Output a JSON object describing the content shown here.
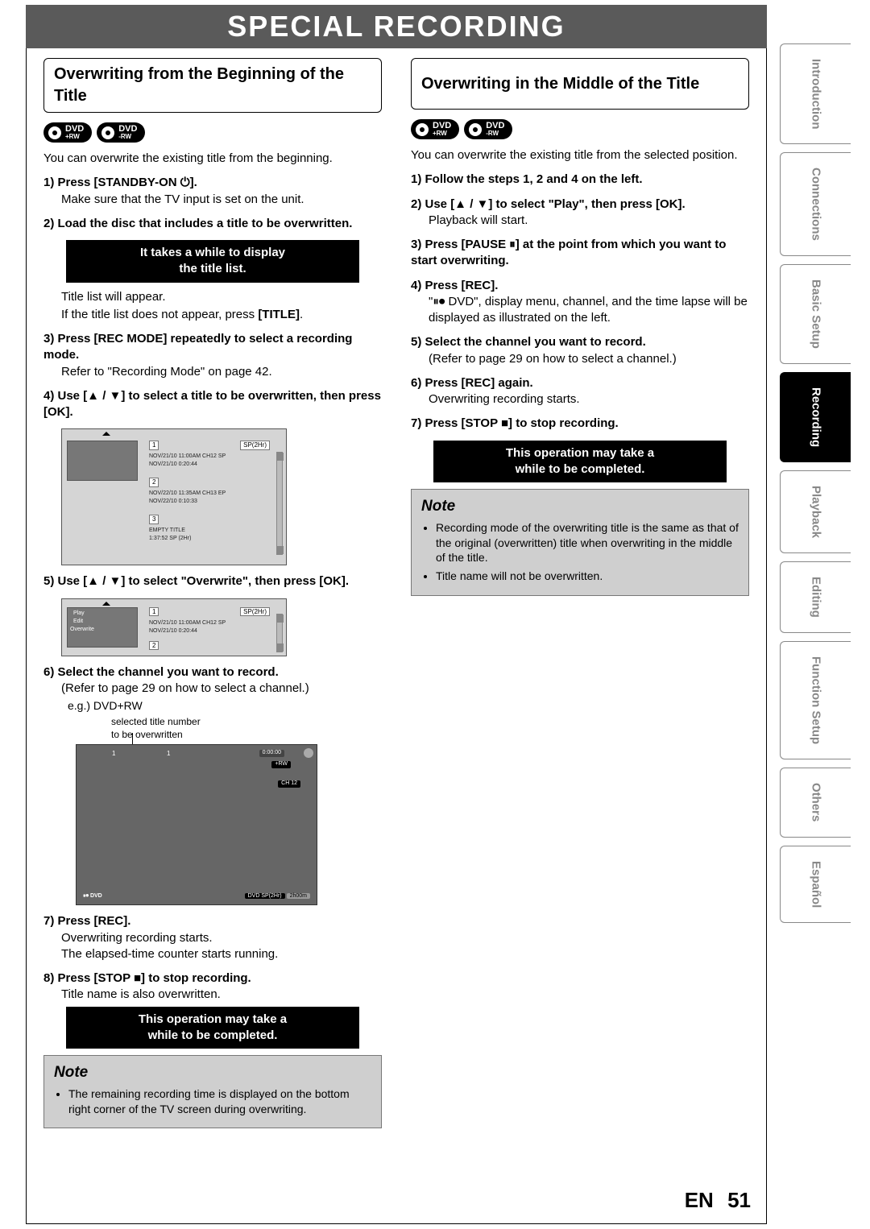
{
  "banner": "SPECIAL RECORDING",
  "page_label": "EN",
  "page_number": "51",
  "tabs": [
    "Introduction",
    "Connections",
    "Basic Setup",
    "Recording",
    "Playback",
    "Editing",
    "Function Setup",
    "Others",
    "Español"
  ],
  "active_tab_index": 3,
  "left": {
    "title": "Overwriting from the Beginning of the Title",
    "dvd_badges": [
      {
        "main": "DVD",
        "sub": "+RW"
      },
      {
        "main": "DVD",
        "sub": "-RW"
      }
    ],
    "intro": "You can overwrite the existing title from the beginning.",
    "step1_b": "1) Press [STANDBY-ON ⏻].",
    "step1_t": "Make sure that the TV input is set on the unit.",
    "step2_b": "2) Load the disc that includes a title to be overwritten.",
    "callout1_l1": "It takes a while to display",
    "callout1_l2": "the title list.",
    "afterlist_1": "Title list will appear.",
    "afterlist_2a": "If the title list does not appear, press ",
    "afterlist_2b": "[TITLE]",
    "afterlist_2c": ".",
    "step3_b": "3) Press [REC MODE] repeatedly to select a recording mode.",
    "step3_t": "Refer to \"Recording Mode\" on page 42.",
    "step4_b": "4) Use [▲ / ▼] to select a title to be overwritten, then press [OK].",
    "step5_b": "5) Use [▲ / ▼] to select \"Overwrite\", then press [OK].",
    "step6_b": "6) Select the channel you want to record.",
    "step6_t": "(Refer to page 29 on how to select a channel.)",
    "eg": "e.g.) DVD+RW",
    "fig3_label": "selected title number\nto be overwritten",
    "step7_b": "7) Press [REC].",
    "step7_t1": "Overwriting recording starts.",
    "step7_t2": "The elapsed-time counter starts running.",
    "step8_b": "8) Press [STOP ■] to stop recording.",
    "step8_t": "Title name is also overwritten.",
    "callout2_l1": "This operation may take a",
    "callout2_l2": "while to be completed.",
    "note_head": "Note",
    "note_items": [
      "The remaining recording time is displayed on the bottom right corner of the TV screen during overwriting."
    ],
    "fig1": {
      "sp_label": "SP(2Hr)",
      "rows": [
        {
          "n": "1",
          "l1": "NOV/21/10  11:00AM CH12  SP",
          "l2": "NOV/21/10   0:20:44"
        },
        {
          "n": "2",
          "l1": "NOV/22/10  11:35AM CH13  EP",
          "l2": "NOV/22/10   0:10:33"
        },
        {
          "n": "3",
          "l1": "EMPTY TITLE",
          "l2": "1:37:52  SP (2Hr)"
        }
      ]
    },
    "fig2": {
      "menu": [
        "Play",
        "Edit",
        "Overwrite"
      ],
      "sp_label": "SP(2Hr)",
      "row": {
        "n": "1",
        "l1": "NOV/21/10  11:00AM CH12  SP",
        "l2": "NOV/21/10   0:20:44"
      },
      "row2_n": "2"
    },
    "fig3": {
      "top_left_a": "1",
      "top_left_b": "1",
      "time": "0:00:00",
      "fmt": "+RW",
      "ch": "CH   12",
      "bottom_left": "⏸⏺ DVD",
      "bottom_mid": "DVD SP(2Hr)",
      "bottom_right": "2h00m"
    }
  },
  "right": {
    "title": "Overwriting in the Middle of the Title",
    "dvd_badges": [
      {
        "main": "DVD",
        "sub": "+RW"
      },
      {
        "main": "DVD",
        "sub": "-RW"
      }
    ],
    "intro": "You can overwrite the existing title from the selected position.",
    "step1_b": "1) Follow the steps 1, 2 and 4 on the left.",
    "step2_b": "2) Use [▲ / ▼] to select \"Play\", then press [OK].",
    "step2_t": "Playback will start.",
    "step3_b": "3) Press [PAUSE ⏸] at the point from which you want to start overwriting.",
    "step4_b": "4) Press [REC].",
    "step4_t": "\"⏸⏺ DVD\", display menu, channel, and the time lapse will be displayed as illustrated on the left.",
    "step5_b": "5) Select the channel you want to record.",
    "step5_t": "(Refer to page 29 on how to select a channel.)",
    "step6_b": "6) Press [REC] again.",
    "step6_t": "Overwriting recording starts.",
    "step7_b": "7) Press [STOP ■] to stop recording.",
    "callout_l1": "This operation may take a",
    "callout_l2": "while to be completed.",
    "note_head": "Note",
    "note_items": [
      "Recording mode of the overwriting title is the same as that of the original (overwritten) title when overwriting in the middle of the title.",
      "Title name will not be overwritten."
    ]
  }
}
